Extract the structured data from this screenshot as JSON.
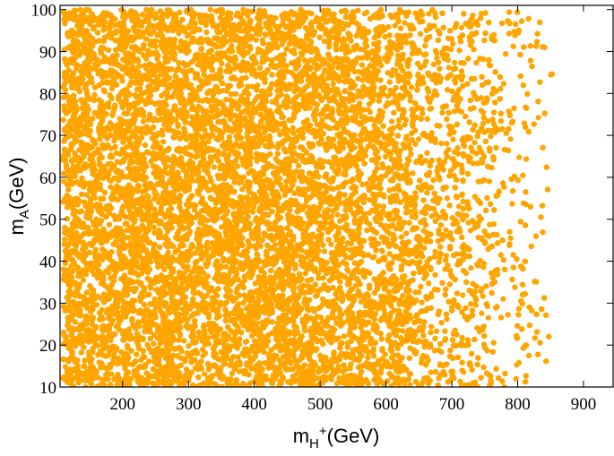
{
  "chart_data": {
    "type": "scatter",
    "title": "",
    "xlabel": {
      "base": "m",
      "sub": "H",
      "sup": "+",
      "rest": "(GeV)"
    },
    "ylabel": {
      "base": "m",
      "sub": "A",
      "rest": "(GeV)"
    },
    "xlim": [
      105,
      945
    ],
    "ylim": [
      10,
      101
    ],
    "x_ticks": [
      200,
      300,
      400,
      500,
      600,
      700,
      800,
      900
    ],
    "y_ticks": [
      10,
      20,
      30,
      40,
      50,
      60,
      70,
      80,
      90,
      100
    ],
    "grid": false,
    "legend": "none",
    "point_color": "#FFA500",
    "distribution": {
      "x_min": 110,
      "x_dense_until": 640,
      "x_max": 860,
      "y_min": 10,
      "y_max": 100,
      "n_points": 26000
    }
  }
}
